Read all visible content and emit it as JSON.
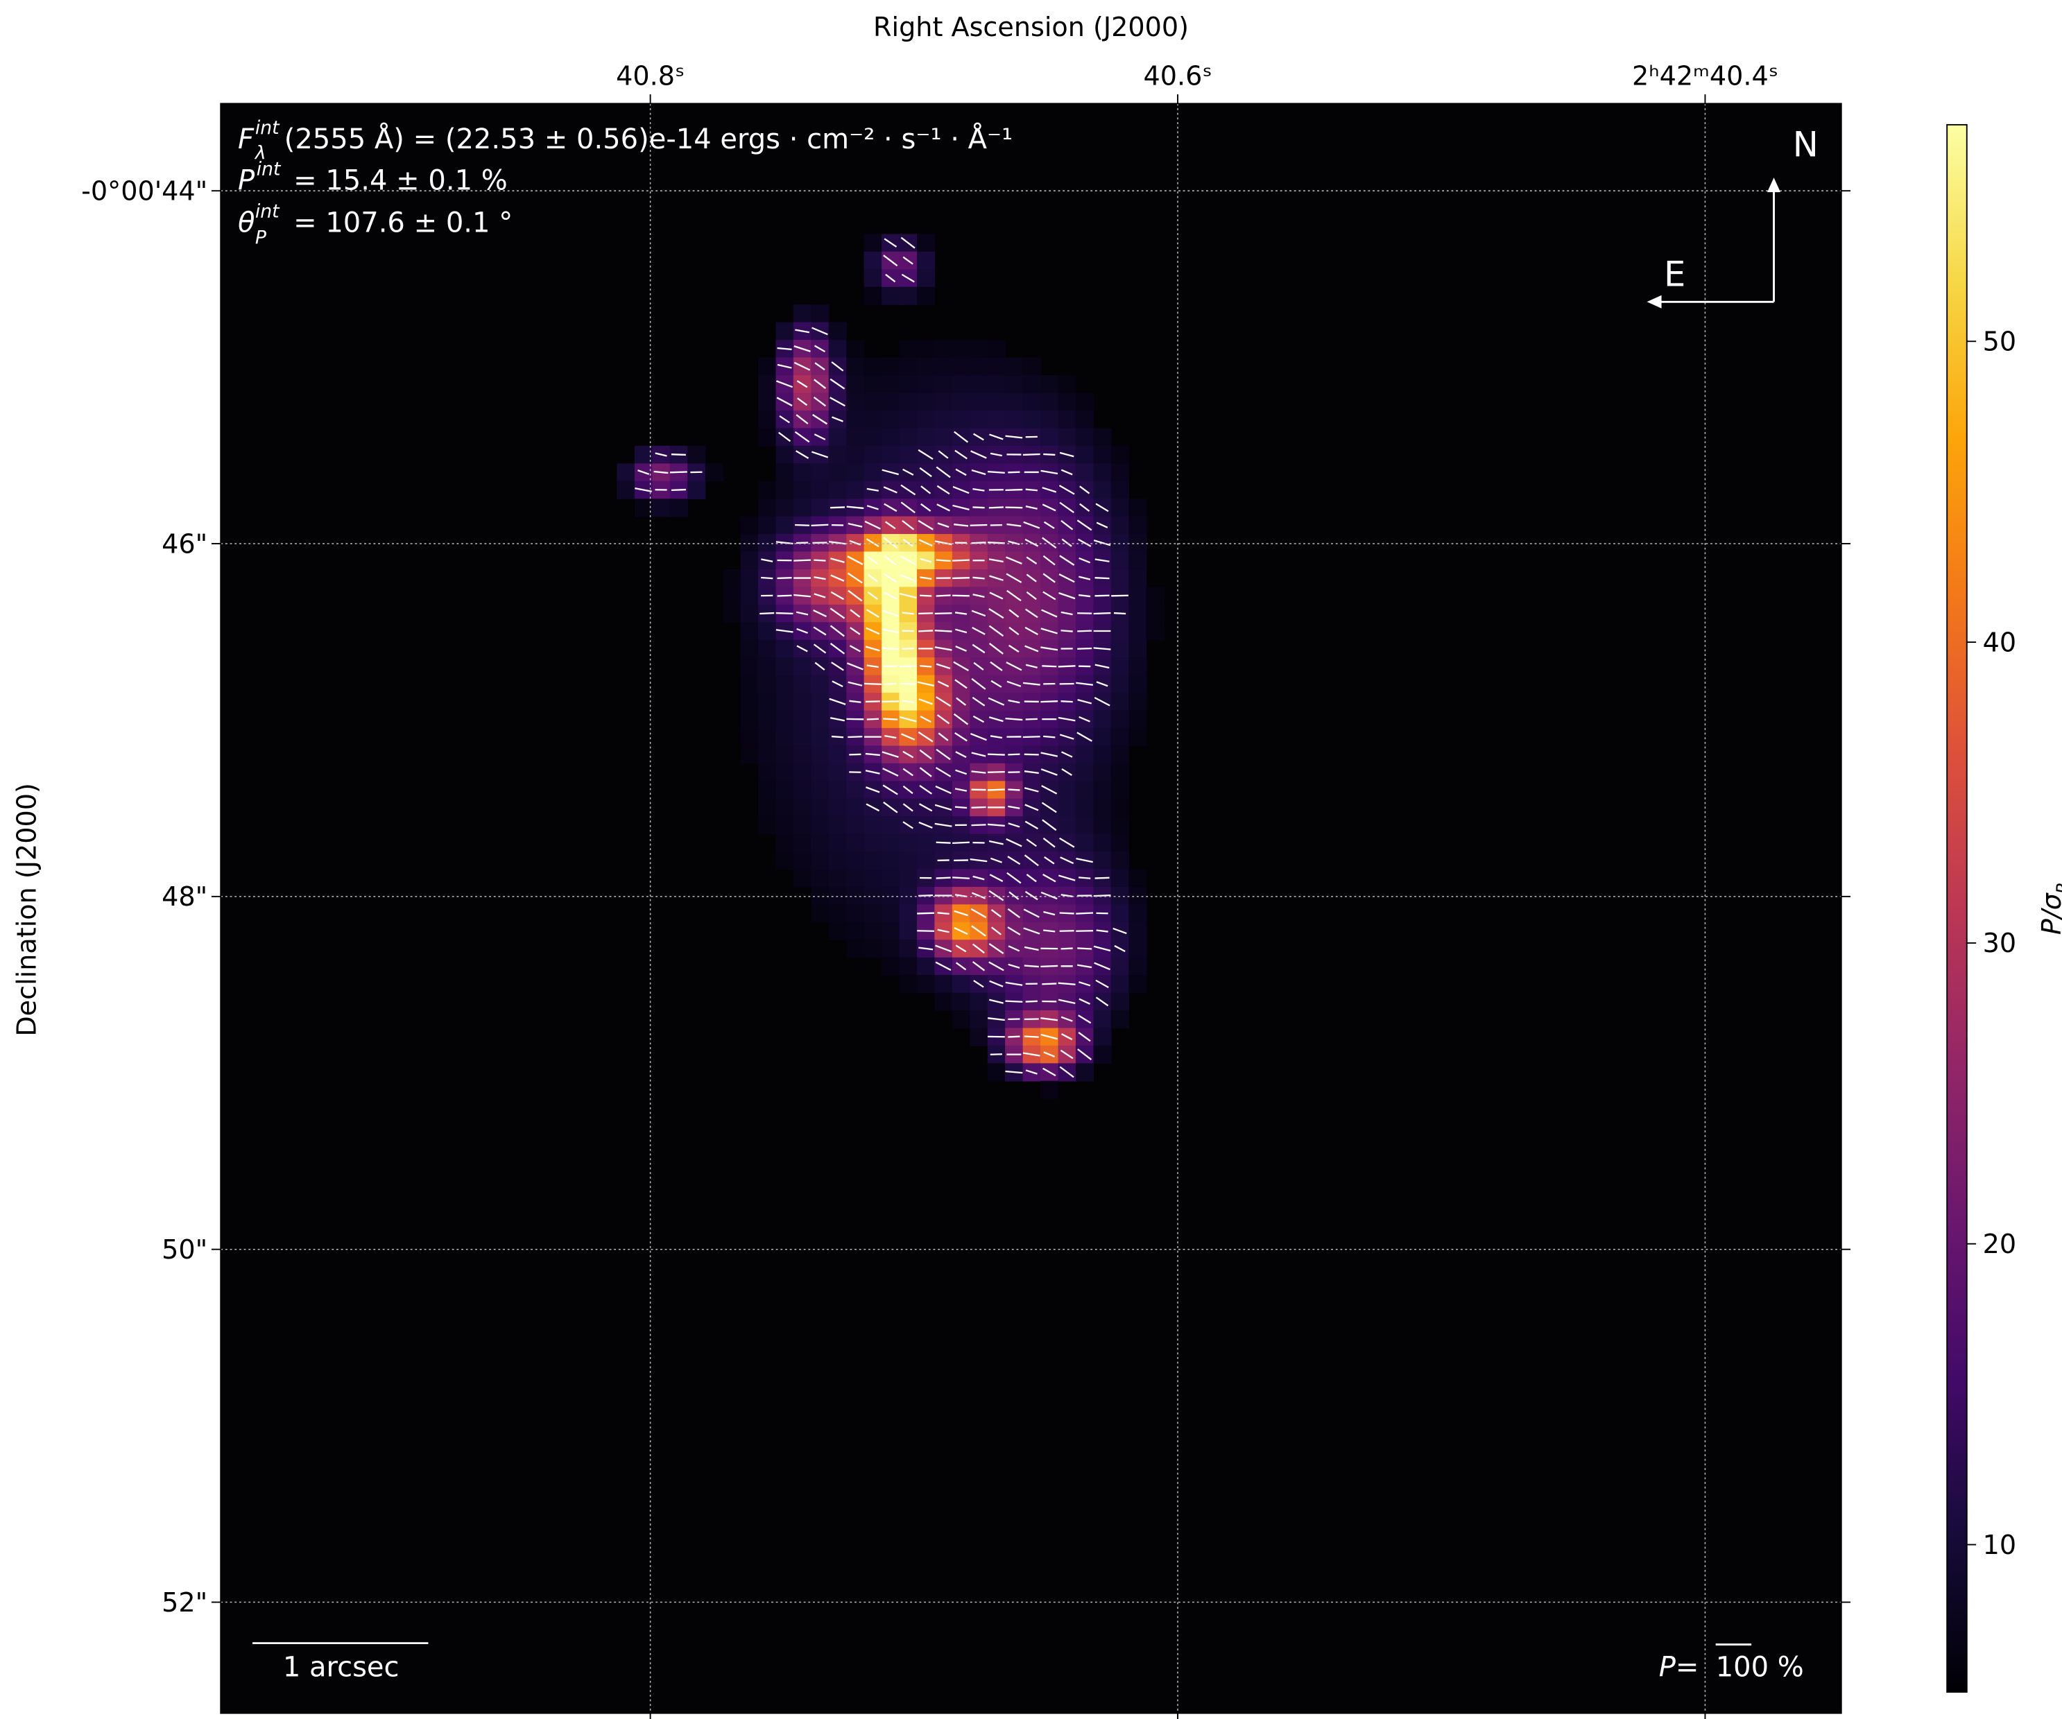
{
  "chart_data": {
    "type": "heatmap",
    "title": "",
    "xlabel": "Right Ascension (J2000)",
    "ylabel": "Declination (J2000)",
    "x_ticks": [
      {
        "value": 40.8,
        "label": "40.8ˢ"
      },
      {
        "value": 40.6,
        "label": "40.6ˢ"
      },
      {
        "value": 40.4,
        "label": "2ʰ42ᵐ40.4ˢ"
      }
    ],
    "y_ticks": [
      {
        "value": 44,
        "label": "-0°00'44\""
      },
      {
        "value": 46,
        "label": "46\""
      },
      {
        "value": 48,
        "label": "48\""
      },
      {
        "value": 50,
        "label": "50\""
      },
      {
        "value": 52,
        "label": "52\""
      }
    ],
    "xlim_seconds": [
      40.965,
      40.349
    ],
    "ylim_arcsec": [
      43.5,
      52.6
    ],
    "grid": true,
    "colormap": "inferno",
    "colorbar": {
      "label": "P/σ",
      "label_sub": "P",
      "range": [
        5.1,
        57.2
      ],
      "ticks": [
        {
          "value": 10,
          "label": "10"
        },
        {
          "value": 20,
          "label": "20"
        },
        {
          "value": 30,
          "label": "30"
        },
        {
          "value": 40,
          "label": "40"
        },
        {
          "value": 50,
          "label": "50"
        }
      ]
    },
    "features": [
      {
        "ra": 40.7083,
        "dec": 46.44,
        "value": 45,
        "sigma_ra": 0.11,
        "sigma_dec": 0.3
      },
      {
        "ra": 40.7008,
        "dec": 46.07,
        "value": 35,
        "sigma_ra": 0.22,
        "sigma_dec": 0.11
      },
      {
        "ra": 40.7008,
        "dec": 46.91,
        "value": 33,
        "sigma_ra": 0.15,
        "sigma_dec": 0.22
      },
      {
        "ra": 40.7308,
        "dec": 46.22,
        "value": 22,
        "sigma_ra": 0.22,
        "sigma_dec": 0.19
      },
      {
        "ra": 40.6807,
        "dec": 48.16,
        "value": 36,
        "sigma_ra": 0.14,
        "sigma_dec": 0.14
      },
      {
        "ra": 40.6506,
        "dec": 48.84,
        "value": 36,
        "sigma_ra": 0.14,
        "sigma_dec": 0.11
      },
      {
        "ra": 40.6707,
        "dec": 47.42,
        "value": 30,
        "sigma_ra": 0.09,
        "sigma_dec": 0.09
      },
      {
        "ra": 40.7409,
        "dec": 45.09,
        "value": 24,
        "sigma_ra": 0.11,
        "sigma_dec": 0.22
      },
      {
        "ra": 40.796,
        "dec": 45.62,
        "value": 20,
        "sigma_ra": 0.15,
        "sigma_dec": 0.11
      },
      {
        "ra": 40.7058,
        "dec": 44.42,
        "value": 17,
        "sigma_ra": 0.11,
        "sigma_dec": 0.11
      },
      {
        "ra": 40.6957,
        "dec": 46.66,
        "value": 13,
        "sigma_ra": 0.9,
        "sigma_dec": 1.5
      },
      {
        "ra": 40.6456,
        "dec": 48.31,
        "value": 16,
        "sigma_ra": 0.3,
        "sigma_dec": 0.37
      },
      {
        "ra": 40.6556,
        "dec": 46.29,
        "value": 13,
        "sigma_ra": 0.37,
        "sigma_dec": 0.6
      }
    ],
    "vector_angle_deg": 107.6
  },
  "annotations": {
    "flux": {
      "symbol": "F",
      "sup": "int",
      "sub": "λ",
      "text": "(2555 Å) = (22.53 ± 0.56)e-14 ergs · cm⁻² · s⁻¹ · Å⁻¹"
    },
    "pol": {
      "symbol": "P",
      "sup": "int",
      "text": "= 15.4 ± 0.1 %"
    },
    "angle": {
      "symbol": "θ",
      "sup": "int",
      "sub": "P",
      "text": "= 107.6 ± 0.1 °"
    }
  },
  "compass": {
    "north": "N",
    "east": "E"
  },
  "scale_bar": {
    "label": "1 arcsec"
  },
  "vector_scale": {
    "prefix": "P=",
    "label": "100 %"
  }
}
